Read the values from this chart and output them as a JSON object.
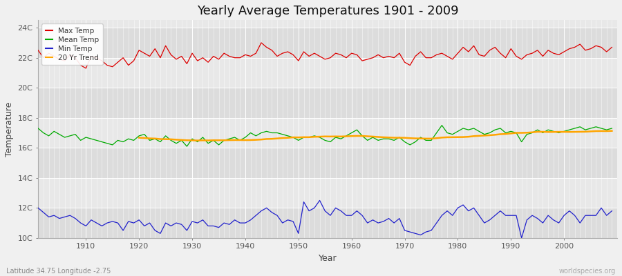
{
  "title": "Yearly Average Temperatures 1901 - 2009",
  "xlabel": "Year",
  "ylabel": "Temperature",
  "lat_lon_label": "Latitude 34.75 Longitude -2.75",
  "worldspecies_label": "worldspecies.org",
  "years": [
    1901,
    1902,
    1903,
    1904,
    1905,
    1906,
    1907,
    1908,
    1909,
    1910,
    1911,
    1912,
    1913,
    1914,
    1915,
    1916,
    1917,
    1918,
    1919,
    1920,
    1921,
    1922,
    1923,
    1924,
    1925,
    1926,
    1927,
    1928,
    1929,
    1930,
    1931,
    1932,
    1933,
    1934,
    1935,
    1936,
    1937,
    1938,
    1939,
    1940,
    1941,
    1942,
    1943,
    1944,
    1945,
    1946,
    1947,
    1948,
    1949,
    1950,
    1951,
    1952,
    1953,
    1954,
    1955,
    1956,
    1957,
    1958,
    1959,
    1960,
    1961,
    1962,
    1963,
    1964,
    1965,
    1966,
    1967,
    1968,
    1969,
    1970,
    1971,
    1972,
    1973,
    1974,
    1975,
    1976,
    1977,
    1978,
    1979,
    1980,
    1981,
    1982,
    1983,
    1984,
    1985,
    1986,
    1987,
    1988,
    1989,
    1990,
    1991,
    1992,
    1993,
    1994,
    1995,
    1996,
    1997,
    1998,
    1999,
    2000,
    2001,
    2002,
    2003,
    2004,
    2005,
    2006,
    2007,
    2008,
    2009
  ],
  "max_temp": [
    22.5,
    22.0,
    22.3,
    22.1,
    21.9,
    21.8,
    22.2,
    22.0,
    21.5,
    21.3,
    22.1,
    22.0,
    21.8,
    21.5,
    21.4,
    21.7,
    22.0,
    21.5,
    21.8,
    22.5,
    22.3,
    22.1,
    22.6,
    22.0,
    22.8,
    22.2,
    21.9,
    22.1,
    21.6,
    22.3,
    21.8,
    22.0,
    21.7,
    22.1,
    21.9,
    22.3,
    22.1,
    22.0,
    22.0,
    22.2,
    22.1,
    22.3,
    23.0,
    22.7,
    22.5,
    22.1,
    22.3,
    22.4,
    22.2,
    21.8,
    22.4,
    22.1,
    22.3,
    22.1,
    21.9,
    22.0,
    22.3,
    22.2,
    22.0,
    22.3,
    22.2,
    21.8,
    21.9,
    22.0,
    22.2,
    22.0,
    22.1,
    22.0,
    22.3,
    21.7,
    21.5,
    22.1,
    22.4,
    22.0,
    22.0,
    22.2,
    22.3,
    22.1,
    21.9,
    22.3,
    22.7,
    22.4,
    22.8,
    22.2,
    22.1,
    22.5,
    22.7,
    22.3,
    22.0,
    22.6,
    22.1,
    21.9,
    22.2,
    22.3,
    22.5,
    22.1,
    22.5,
    22.3,
    22.2,
    22.4,
    22.6,
    22.7,
    22.9,
    22.5,
    22.6,
    22.8,
    22.7,
    22.4,
    22.7
  ],
  "mean_temp": [
    17.3,
    17.0,
    16.8,
    17.1,
    16.9,
    16.7,
    16.8,
    16.9,
    16.5,
    16.7,
    16.6,
    16.5,
    16.4,
    16.3,
    16.2,
    16.5,
    16.4,
    16.6,
    16.5,
    16.8,
    16.9,
    16.5,
    16.6,
    16.4,
    16.8,
    16.5,
    16.3,
    16.5,
    16.1,
    16.6,
    16.4,
    16.7,
    16.3,
    16.5,
    16.2,
    16.5,
    16.6,
    16.7,
    16.5,
    16.7,
    17.0,
    16.8,
    17.0,
    17.1,
    17.0,
    17.0,
    16.9,
    16.8,
    16.7,
    16.5,
    16.7,
    16.7,
    16.8,
    16.7,
    16.5,
    16.4,
    16.7,
    16.6,
    16.8,
    17.0,
    17.2,
    16.8,
    16.5,
    16.7,
    16.5,
    16.6,
    16.6,
    16.5,
    16.7,
    16.4,
    16.2,
    16.4,
    16.7,
    16.5,
    16.5,
    17.0,
    17.5,
    17.0,
    16.9,
    17.1,
    17.3,
    17.2,
    17.3,
    17.1,
    16.9,
    17.0,
    17.2,
    17.3,
    17.0,
    17.1,
    17.0,
    16.4,
    16.9,
    17.0,
    17.2,
    17.0,
    17.2,
    17.1,
    17.0,
    17.1,
    17.2,
    17.3,
    17.4,
    17.2,
    17.3,
    17.4,
    17.3,
    17.2,
    17.3
  ],
  "min_temp": [
    12.0,
    11.7,
    11.4,
    11.5,
    11.3,
    11.4,
    11.5,
    11.3,
    11.0,
    10.8,
    11.2,
    11.0,
    10.8,
    11.0,
    11.1,
    11.0,
    10.5,
    11.1,
    11.0,
    11.2,
    10.8,
    11.0,
    10.5,
    10.3,
    11.0,
    10.8,
    11.0,
    10.9,
    10.5,
    11.1,
    11.0,
    11.2,
    10.8,
    10.8,
    10.7,
    11.0,
    10.9,
    11.2,
    11.0,
    11.0,
    11.2,
    11.5,
    11.8,
    12.0,
    11.7,
    11.5,
    11.0,
    11.2,
    11.1,
    10.3,
    12.4,
    11.8,
    12.0,
    12.5,
    11.8,
    11.5,
    12.0,
    11.8,
    11.5,
    11.5,
    11.8,
    11.5,
    11.0,
    11.2,
    11.0,
    11.1,
    11.3,
    11.0,
    11.3,
    10.5,
    10.4,
    10.3,
    10.2,
    10.4,
    10.5,
    11.0,
    11.5,
    11.8,
    11.5,
    12.0,
    12.2,
    11.8,
    12.0,
    11.5,
    11.0,
    11.2,
    11.5,
    11.8,
    11.5,
    11.5,
    11.5,
    10.0,
    11.2,
    11.5,
    11.3,
    11.0,
    11.5,
    11.2,
    11.0,
    11.5,
    11.8,
    11.5,
    11.0,
    11.5,
    11.5,
    11.5,
    12.0,
    11.5,
    11.8
  ],
  "bg_color": "#f0f0f0",
  "plot_bg_color_light": "#e8e8e8",
  "plot_bg_color_dark": "#dcdcdc",
  "max_color": "#dd0000",
  "mean_color": "#00aa00",
  "min_color": "#2222cc",
  "trend_color": "#ffa500",
  "ylim": [
    10,
    24.5
  ],
  "yticks": [
    10,
    12,
    14,
    16,
    18,
    20,
    22,
    24
  ],
  "ytick_labels": [
    "10C",
    "12C",
    "14C",
    "16C",
    "18C",
    "20C",
    "22C",
    "24C"
  ],
  "xtick_positions": [
    1910,
    1920,
    1930,
    1940,
    1950,
    1960,
    1970,
    1980,
    1990,
    2000
  ],
  "xlim": [
    1901,
    2010
  ],
  "title_fontsize": 13,
  "label_fontsize": 9,
  "tick_fontsize": 8,
  "legend_fontsize": 7.5
}
